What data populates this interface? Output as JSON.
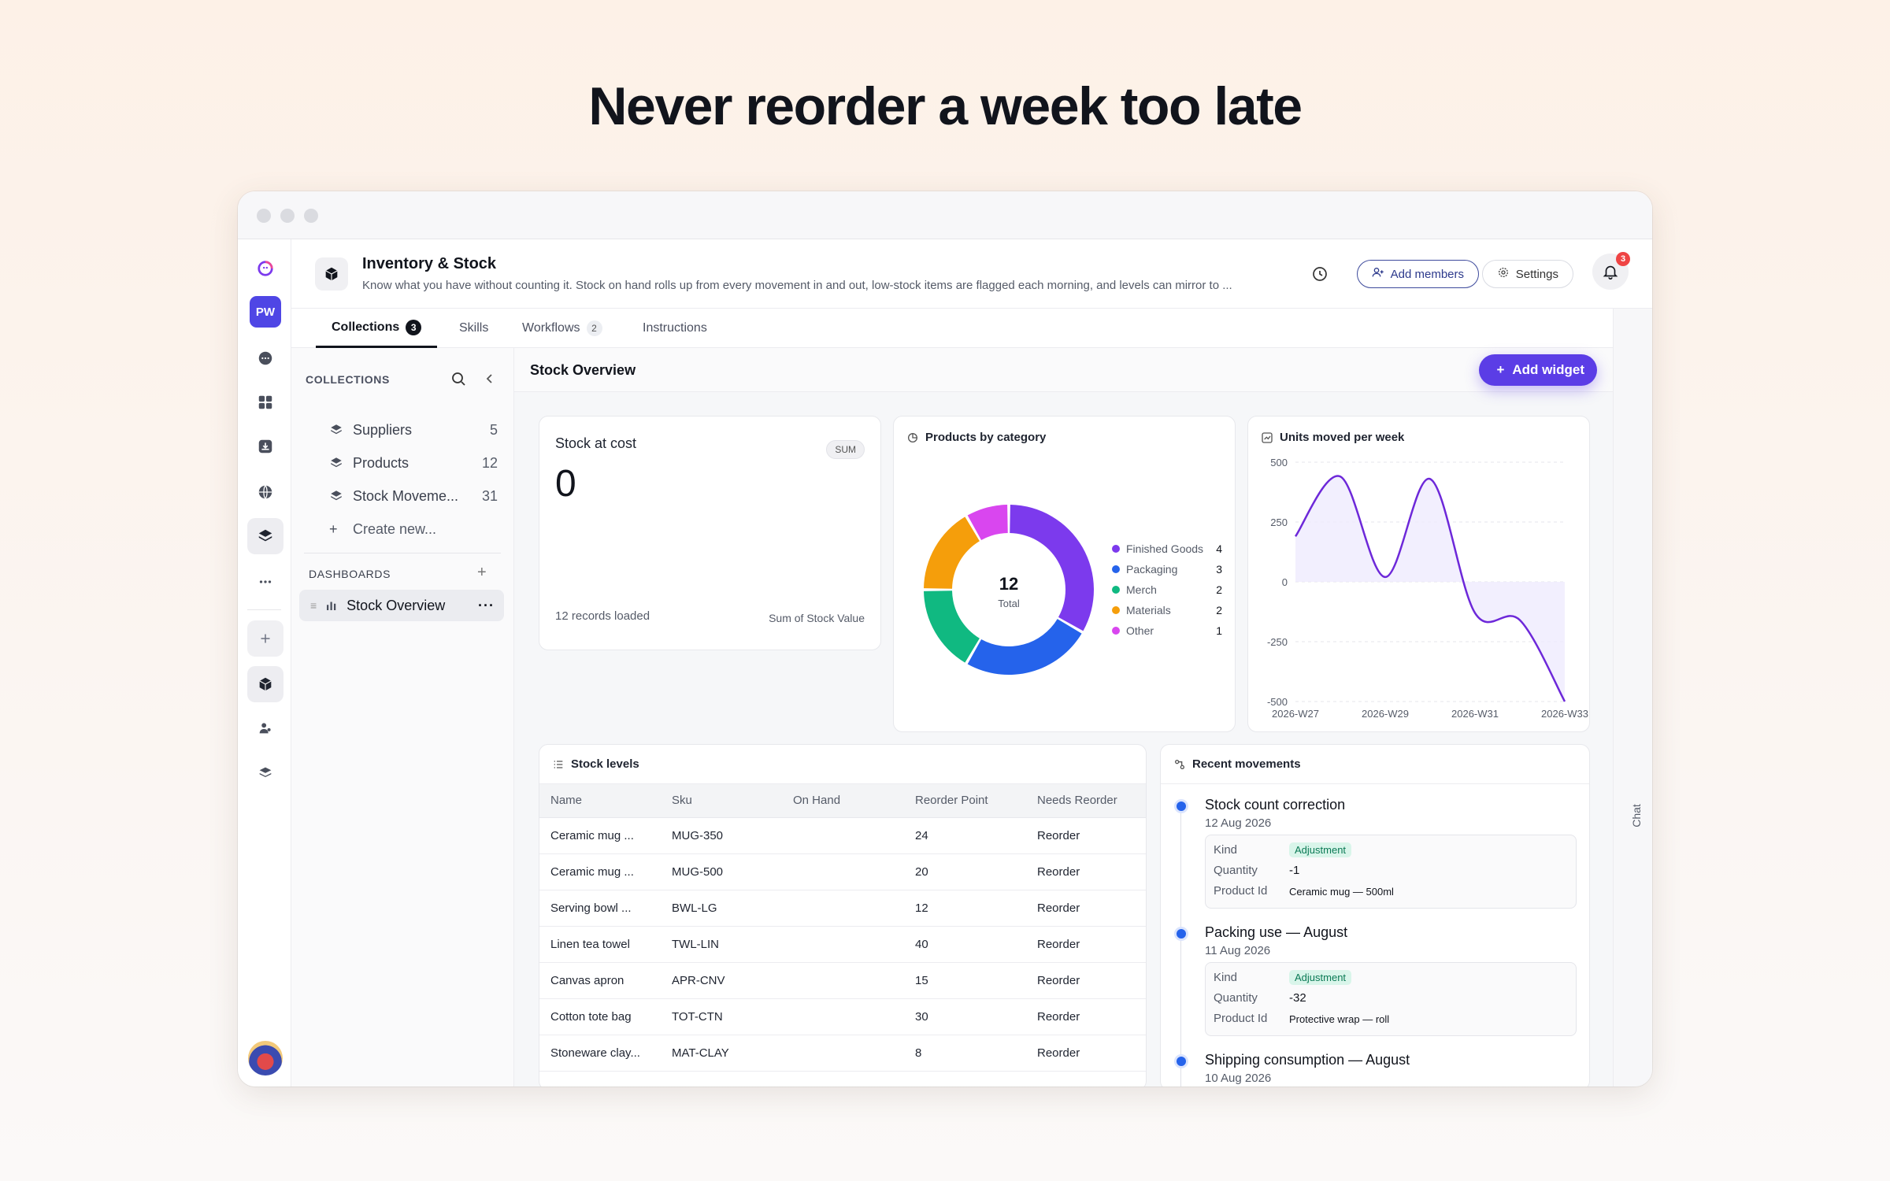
{
  "headline": "Never reorder a week too late",
  "header": {
    "title": "Inventory & Stock",
    "description": "Know what you have without counting it. Stock on hand rolls up from every movement in and out, low-stock items are flagged each morning, and levels can mirror to ...",
    "add_members": "Add members",
    "settings": "Settings",
    "notifications": "3"
  },
  "rail": {
    "workspace": "PW"
  },
  "tabs": [
    {
      "label": "Collections",
      "count": "3"
    },
    {
      "label": "Skills",
      "count": ""
    },
    {
      "label": "Workflows",
      "count": "2"
    },
    {
      "label": "Instructions",
      "count": ""
    }
  ],
  "chat_label": "Chat",
  "sidebar": {
    "collections_title": "COLLECTIONS",
    "collections": [
      {
        "label": "Suppliers",
        "count": "5"
      },
      {
        "label": "Products",
        "count": "12"
      },
      {
        "label": "Stock Moveme...",
        "count": "31"
      }
    ],
    "create_new": "Create new...",
    "dashboards_title": "DASHBOARDS",
    "dashboard": "Stock Overview"
  },
  "main": {
    "title": "Stock Overview",
    "add_widget": "Add widget"
  },
  "stock_card": {
    "title": "Stock at cost",
    "agg": "SUM",
    "value": "0",
    "footer_left": "12 records loaded",
    "footer_right": "Sum of Stock Value"
  },
  "category_card": {
    "title": "Products by category",
    "total": "12",
    "total_label": "Total"
  },
  "weekly_card": {
    "title": "Units moved per week"
  },
  "chart_data": [
    {
      "type": "pie",
      "title": "Products by category",
      "categories": [
        "Finished Goods",
        "Packaging",
        "Merch",
        "Materials",
        "Other"
      ],
      "values": [
        4,
        3,
        2,
        2,
        1
      ],
      "colors": [
        "#7c3aed",
        "#2563eb",
        "#10b981",
        "#f59e0b",
        "#d946ef"
      ],
      "legend": "right"
    },
    {
      "type": "area",
      "title": "Units moved per week",
      "x": [
        "2026-W27",
        "2026-W28",
        "2026-W29",
        "2026-W30",
        "2026-W31",
        "2026-W32",
        "2026-W33"
      ],
      "y": [
        190,
        440,
        20,
        430,
        -130,
        -160,
        -500
      ],
      "xticks": [
        "2026-W27",
        "2026-W29",
        "2026-W31",
        "2026-W33"
      ],
      "yticks": [
        500,
        250,
        0,
        -250,
        -500
      ],
      "ylim": [
        -500,
        500
      ],
      "color": "#6d28d9",
      "grid": true
    }
  ],
  "stock_levels": {
    "title": "Stock levels",
    "columns": [
      "Name",
      "Sku",
      "On Hand",
      "Reorder Point",
      "Needs Reorder"
    ],
    "rows": [
      [
        "Ceramic mug ...",
        "MUG-350",
        "",
        "24",
        "Reorder"
      ],
      [
        "Ceramic mug ...",
        "MUG-500",
        "",
        "20",
        "Reorder"
      ],
      [
        "Serving bowl ...",
        "BWL-LG",
        "",
        "12",
        "Reorder"
      ],
      [
        "Linen tea towel",
        "TWL-LIN",
        "",
        "40",
        "Reorder"
      ],
      [
        "Canvas apron",
        "APR-CNV",
        "",
        "15",
        "Reorder"
      ],
      [
        "Cotton tote bag",
        "TOT-CTN",
        "",
        "30",
        "Reorder"
      ],
      [
        "Stoneware clay...",
        "MAT-CLAY",
        "",
        "8",
        "Reorder"
      ]
    ]
  },
  "movements": {
    "title": "Recent movements",
    "labels": {
      "kind": "Kind",
      "quantity": "Quantity",
      "product": "Product Id"
    },
    "items": [
      {
        "title": "Stock count correction",
        "date": "12 Aug 2026",
        "kind": "Adjustment",
        "quantity": "-1",
        "product": "Ceramic mug — 500ml"
      },
      {
        "title": "Packing use — August",
        "date": "11 Aug 2026",
        "kind": "Adjustment",
        "quantity": "-32",
        "product": "Protective wrap — roll"
      },
      {
        "title": "Shipping consumption — August",
        "date": "10 Aug 2026",
        "kind": "",
        "quantity": "",
        "product": ""
      }
    ]
  }
}
